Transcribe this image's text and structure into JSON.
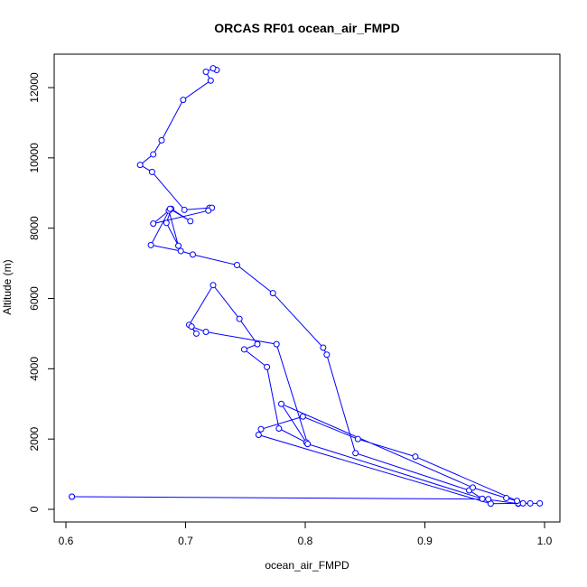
{
  "chart_data": {
    "type": "line",
    "title": "ORCAS RF01 ocean_air_FMPD",
    "xlabel": "ocean_air_FMPD",
    "ylabel": "Altitude (m)",
    "xlim": [
      0.6,
      1.0
    ],
    "ylim": [
      0,
      12500
    ],
    "xticks": [
      "0.6",
      "0.7",
      "0.8",
      "0.9",
      "1.0"
    ],
    "yticks": [
      "0",
      "2000",
      "4000",
      "6000",
      "8000",
      "10000",
      "12000"
    ],
    "grid": false,
    "colors": {
      "series": "#0000ff",
      "axis": "#000000"
    },
    "series": [
      {
        "x": [
          0.726,
          0.723,
          0.717,
          0.721,
          0.698,
          0.68,
          0.673,
          0.662,
          0.672,
          0.699,
          0.72,
          0.722,
          0.719,
          0.673,
          0.686,
          0.694,
          0.684,
          0.688,
          0.704,
          0.687,
          0.671,
          0.696,
          0.706,
          0.743,
          0.773,
          0.815,
          0.818,
          0.842,
          0.937,
          0.948,
          0.978,
          0.988,
          0.996,
          0.978,
          0.955,
          0.761,
          0.763,
          0.798,
          0.844,
          0.892,
          0.982,
          0.977,
          0.968,
          0.94,
          0.78,
          0.801,
          0.778,
          0.768,
          0.749,
          0.76,
          0.745,
          0.723,
          0.703,
          0.709,
          0.705,
          0.717,
          0.776,
          0.802,
          0.948,
          0.953,
          0.605,
          0.605
        ],
        "y": [
          12500,
          12550,
          12450,
          12200,
          11650,
          10500,
          10100,
          9800,
          9600,
          8520,
          8580,
          8580,
          8500,
          8130,
          8500,
          7500,
          8150,
          8550,
          8200,
          8550,
          7520,
          7350,
          7250,
          6950,
          6150,
          4600,
          4400,
          1600,
          540,
          300,
          160,
          170,
          170,
          170,
          160,
          2120,
          2280,
          2640,
          2000,
          1500,
          170,
          240,
          320,
          620,
          3000,
          1900,
          2300,
          4050,
          4550,
          4700,
          5420,
          6380,
          5250,
          5000,
          5200,
          5050,
          4700,
          1860,
          300,
          290,
          360,
          360
        ]
      }
    ]
  }
}
